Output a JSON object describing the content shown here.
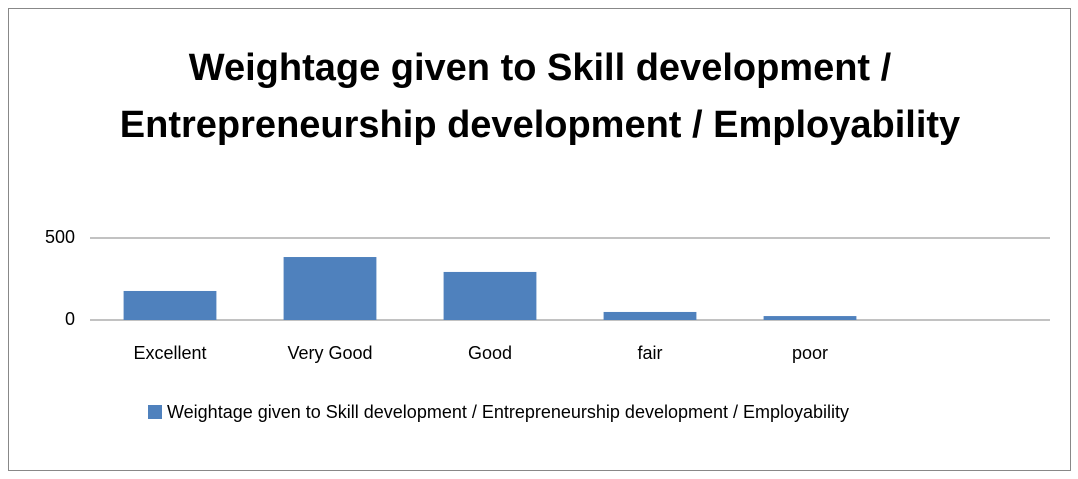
{
  "chart_data": {
    "type": "bar",
    "title": "Weightage given to Skill development / Entrepreneurship development / Employability",
    "categories": [
      "Excellent",
      "Very Good",
      "Good",
      "fair",
      "poor",
      null
    ],
    "series": [
      {
        "name": "Weightage given to Skill development / Entrepreneurship development / Employability",
        "color": "#4f81bd",
        "values": [
          177,
          384,
          293,
          49,
          24,
          null
        ]
      }
    ],
    "ylim": [
      0,
      500
    ],
    "yticks": [
      0,
      500
    ],
    "grid": true,
    "legend": "bottom"
  }
}
